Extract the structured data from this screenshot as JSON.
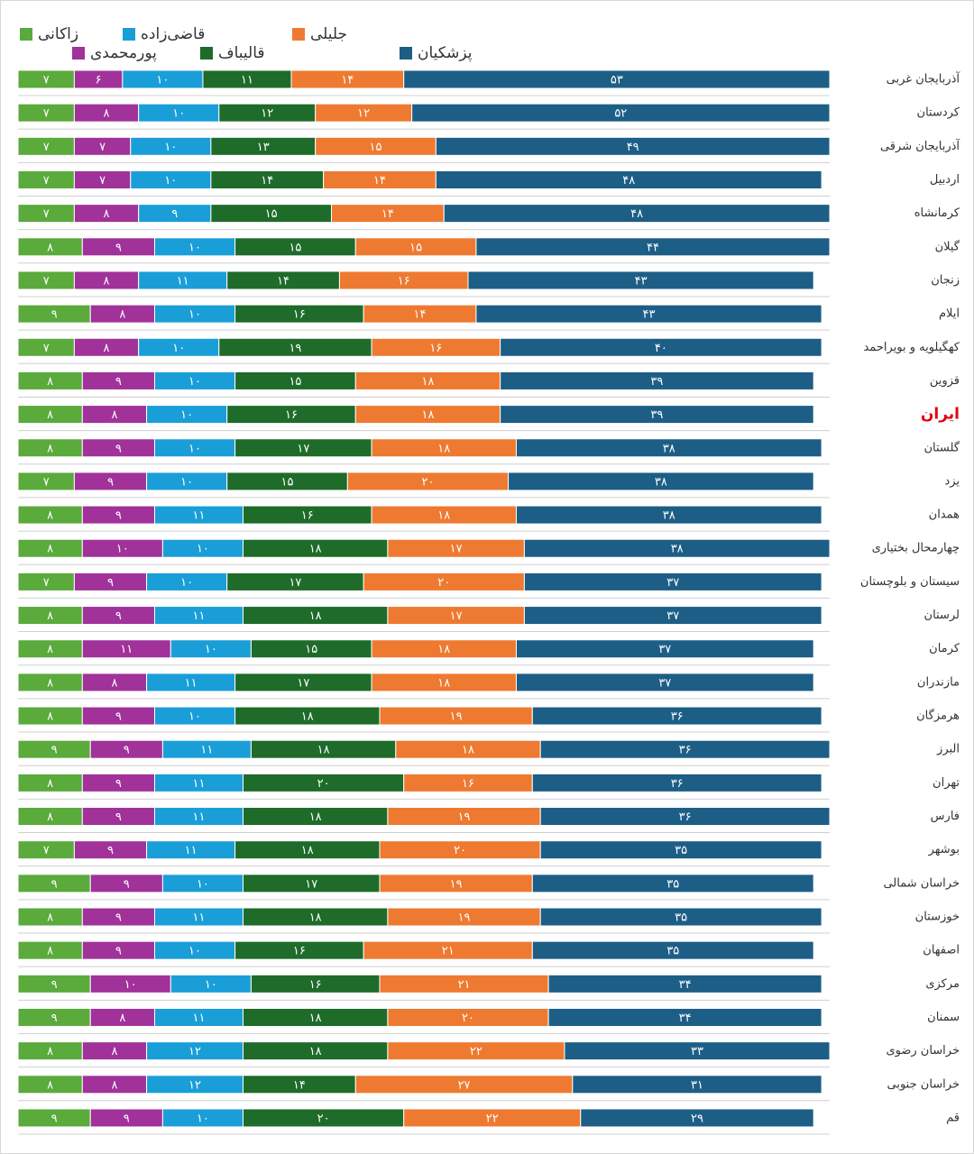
{
  "chart_data": {
    "type": "stacked-bar",
    "categories": [
      "آذربایجان غربی",
      "کردستان",
      "آذربایجان شرقی",
      "اردبیل",
      "کرمانشاه",
      "گیلان",
      "زنجان",
      "ایلام",
      "کهگیلویه و بویراحمد",
      "قزوین",
      "ایران",
      "گلستان",
      "یزد",
      "همدان",
      "چهارمحال بختیاری",
      "سیستان و بلوچستان",
      "لرستان",
      "کرمان",
      "مازندران",
      "هرمزگان",
      "البرز",
      "تهران",
      "فارس",
      "بوشهر",
      "خراسان شمالی",
      "خوزستان",
      "اصفهان",
      "مرکزی",
      "سمنان",
      "خراسان رضوی",
      "خراسان جنوبی",
      "قم"
    ],
    "highlight": {
      "index": 10,
      "color": "#e00010"
    },
    "xlim": [
      0,
      101
    ],
    "series": [
      {
        "name": "زاکانی",
        "color": "#5aaa3c",
        "values": [
          7,
          7,
          7,
          7,
          7,
          8,
          7,
          9,
          7,
          8,
          8,
          8,
          7,
          8,
          8,
          7,
          8,
          8,
          8,
          8,
          9,
          8,
          8,
          7,
          9,
          8,
          8,
          9,
          9,
          8,
          8,
          9
        ],
        "value_labels": [
          "۷",
          "۷",
          "۷",
          "۷",
          "۷",
          "۸",
          "۷",
          "۹",
          "۷",
          "۸",
          "۸",
          "۸",
          "۷",
          "۸",
          "۸",
          "۷",
          "۸",
          "۸",
          "۸",
          "۸",
          "۹",
          "۸",
          "۸",
          "۷",
          "۹",
          "۸",
          "۸",
          "۹",
          "۹",
          "۸",
          "۸",
          "۹"
        ]
      },
      {
        "name": "پورمحمدی",
        "color": "#a0329a",
        "values": [
          6,
          8,
          7,
          7,
          8,
          9,
          8,
          8,
          8,
          9,
          8,
          9,
          9,
          9,
          10,
          9,
          9,
          11,
          8,
          9,
          9,
          9,
          9,
          9,
          9,
          9,
          9,
          10,
          8,
          8,
          8,
          9
        ],
        "value_labels": [
          "۶",
          "۸",
          "۷",
          "۷",
          "۸",
          "۹",
          "۸",
          "۸",
          "۸",
          "۹",
          "۸",
          "۹",
          "۹",
          "۹",
          "۱۰",
          "۹",
          "۹",
          "۱۱",
          "۸",
          "۹",
          "۹",
          "۹",
          "۹",
          "۹",
          "۹",
          "۹",
          "۹",
          "۱۰",
          "۸",
          "۸",
          "۸",
          "۹"
        ]
      },
      {
        "name": "قاضی‌زاده",
        "color": "#1a9ed8",
        "values": [
          10,
          10,
          10,
          10,
          9,
          10,
          11,
          10,
          10,
          10,
          10,
          10,
          10,
          11,
          10,
          10,
          11,
          10,
          11,
          10,
          11,
          11,
          11,
          11,
          10,
          11,
          10,
          10,
          11,
          12,
          12,
          10
        ],
        "value_labels": [
          "۱۰",
          "۱۰",
          "۱۰",
          "۱۰",
          "۹",
          "۱۰",
          "۱۱",
          "۱۰",
          "۱۰",
          "۱۰",
          "۱۰",
          "۱۰",
          "۱۰",
          "۱۱",
          "۱۰",
          "۱۰",
          "۱۱",
          "۱۰",
          "۱۱",
          "۱۰",
          "۱۱",
          "۱۱",
          "۱۱",
          "۱۱",
          "۱۰",
          "۱۱",
          "۱۰",
          "۱۰",
          "۱۱",
          "۱۲",
          "۱۲",
          "۱۰"
        ]
      },
      {
        "name": "قالیباف",
        "color": "#1e6b2a",
        "values": [
          11,
          12,
          13,
          14,
          15,
          15,
          14,
          16,
          19,
          15,
          16,
          17,
          15,
          16,
          18,
          17,
          18,
          15,
          17,
          18,
          18,
          20,
          18,
          18,
          17,
          18,
          16,
          16,
          18,
          18,
          14,
          20
        ],
        "value_labels": [
          "۱۱",
          "۱۲",
          "۱۳",
          "۱۴",
          "۱۵",
          "۱۵",
          "۱۴",
          "۱۶",
          "۱۹",
          "۱۵",
          "۱۶",
          "۱۷",
          "۱۵",
          "۱۶",
          "۱۸",
          "۱۷",
          "۱۸",
          "۱۵",
          "۱۷",
          "۱۸",
          "۱۸",
          "۲۰",
          "۱۸",
          "۱۸",
          "۱۷",
          "۱۸",
          "۱۶",
          "۱۶",
          "۱۸",
          "۱۸",
          "۱۴",
          "۲۰"
        ]
      },
      {
        "name": "جلیلی",
        "color": "#ee7a31",
        "values": [
          14,
          12,
          15,
          14,
          14,
          15,
          16,
          14,
          16,
          18,
          18,
          18,
          20,
          18,
          17,
          20,
          17,
          18,
          18,
          19,
          18,
          16,
          19,
          20,
          19,
          19,
          21,
          21,
          20,
          22,
          27,
          22
        ],
        "value_labels": [
          "۱۴",
          "۱۲",
          "۱۵",
          "۱۴",
          "۱۴",
          "۱۵",
          "۱۶",
          "۱۴",
          "۱۶",
          "۱۸",
          "۱۸",
          "۱۸",
          "۲۰",
          "۱۸",
          "۱۷",
          "۲۰",
          "۱۷",
          "۱۸",
          "۱۸",
          "۱۹",
          "۱۸",
          "۱۶",
          "۱۹",
          "۲۰",
          "۱۹",
          "۱۹",
          "۲۱",
          "۲۱",
          "۲۰",
          "۲۲",
          "۲۷",
          "۲۲"
        ]
      },
      {
        "name": "پزشکیان",
        "color": "#1d5e86",
        "values": [
          53,
          52,
          49,
          48,
          48,
          44,
          43,
          43,
          40,
          39,
          39,
          38,
          38,
          38,
          38,
          37,
          37,
          37,
          37,
          36,
          36,
          36,
          36,
          35,
          35,
          35,
          35,
          34,
          34,
          33,
          31,
          29
        ],
        "value_labels": [
          "۵۳",
          "۵۲",
          "۴۹",
          "۴۸",
          "۴۸",
          "۴۴",
          "۴۳",
          "۴۳",
          "۴۰",
          "۳۹",
          "۳۹",
          "۳۸",
          "۳۸",
          "۳۸",
          "۳۸",
          "۳۷",
          "۳۷",
          "۳۷",
          "۳۷",
          "۳۶",
          "۳۶",
          "۳۶",
          "۳۶",
          "۳۵",
          "۳۵",
          "۳۵",
          "۳۵",
          "۳۴",
          "۳۴",
          "۳۳",
          "۳۱",
          "۲۹"
        ]
      }
    ]
  }
}
